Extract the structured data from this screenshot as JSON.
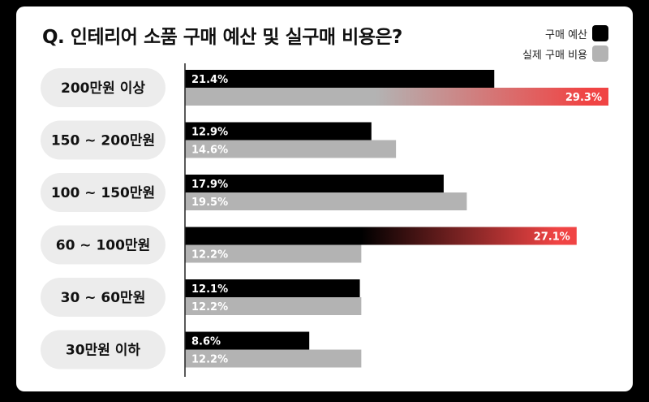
{
  "title": "Q. 인테리어 소품 구매 예산 및 실구매 비용은?",
  "legend": {
    "budget": "구매 예산",
    "actual": "실제 구매 비용"
  },
  "colors": {
    "budget": "#000000",
    "actual": "#b3b3b3",
    "highlight": "#f04444",
    "pill": "#ececec"
  },
  "chart_data": {
    "type": "bar",
    "orientation": "horizontal",
    "title": "Q. 인테리어 소품 구매 예산 및 실구매 비용은?",
    "categories": [
      "200만원 이상",
      "150 ~ 200만원",
      "100 ~ 150만원",
      "60 ~ 100만원",
      "30 ~ 60만원",
      "30만원 이하"
    ],
    "series": [
      {
        "name": "구매 예산",
        "values": [
          21.4,
          12.9,
          17.9,
          27.1,
          12.1,
          8.6
        ],
        "labels": [
          "21.4%",
          "12.9%",
          "17.9%",
          "27.1%",
          "12.1%",
          "8.6%"
        ]
      },
      {
        "name": "실제 구매 비용",
        "values": [
          29.3,
          14.6,
          19.5,
          12.2,
          12.2,
          12.2
        ],
        "labels": [
          "29.3%",
          "14.6%",
          "19.5%",
          "12.2%",
          "12.2%",
          "12.2%"
        ]
      }
    ],
    "highlights": [
      {
        "series": "실제 구매 비용",
        "category": "200만원 이상"
      },
      {
        "series": "구매 예산",
        "category": "60 ~ 100만원"
      }
    ],
    "xlim": [
      0,
      29.3
    ],
    "legend_position": "top-right",
    "grid": false
  }
}
